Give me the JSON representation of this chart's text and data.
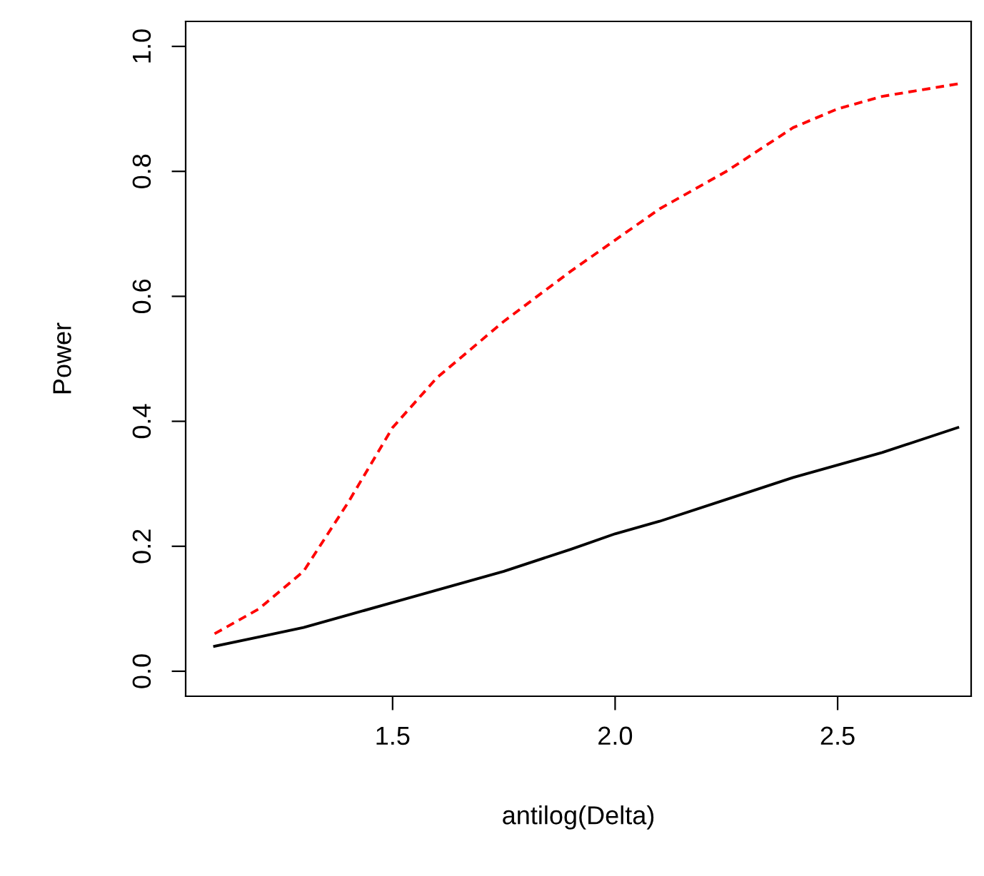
{
  "chart_data": {
    "type": "line",
    "xlabel": "antilog(Delta)",
    "ylabel": "Power",
    "x": [
      1.1,
      1.2,
      1.3,
      1.4,
      1.5,
      1.6,
      1.75,
      1.9,
      2.0,
      2.1,
      2.25,
      2.4,
      2.5,
      2.6,
      2.77
    ],
    "series": [
      {
        "color": "#000000",
        "line_style": "solid",
        "values": [
          0.04,
          0.055,
          0.07,
          0.09,
          0.11,
          0.13,
          0.16,
          0.195,
          0.22,
          0.24,
          0.275,
          0.31,
          0.33,
          0.35,
          0.39
        ]
      },
      {
        "color": "#ff0000",
        "line_style": "dashed",
        "values": [
          0.06,
          0.1,
          0.16,
          0.27,
          0.39,
          0.47,
          0.56,
          0.64,
          0.69,
          0.74,
          0.8,
          0.87,
          0.9,
          0.92,
          0.94
        ]
      }
    ],
    "xlim": [
      1.035,
      2.8
    ],
    "ylim": [
      -0.04,
      1.04
    ],
    "xticks": [
      {
        "value": 1.5,
        "label": "1.5"
      },
      {
        "value": 2.0,
        "label": "2.0"
      },
      {
        "value": 2.5,
        "label": "2.5"
      }
    ],
    "yticks": [
      {
        "value": 0.0,
        "label": "0.0"
      },
      {
        "value": 0.2,
        "label": "0.2"
      },
      {
        "value": 0.4,
        "label": "0.4"
      },
      {
        "value": 0.6,
        "label": "0.6"
      },
      {
        "value": 0.8,
        "label": "0.8"
      },
      {
        "value": 1.0,
        "label": "1.0"
      }
    ],
    "grid": false,
    "legend": false,
    "marker": "none"
  }
}
